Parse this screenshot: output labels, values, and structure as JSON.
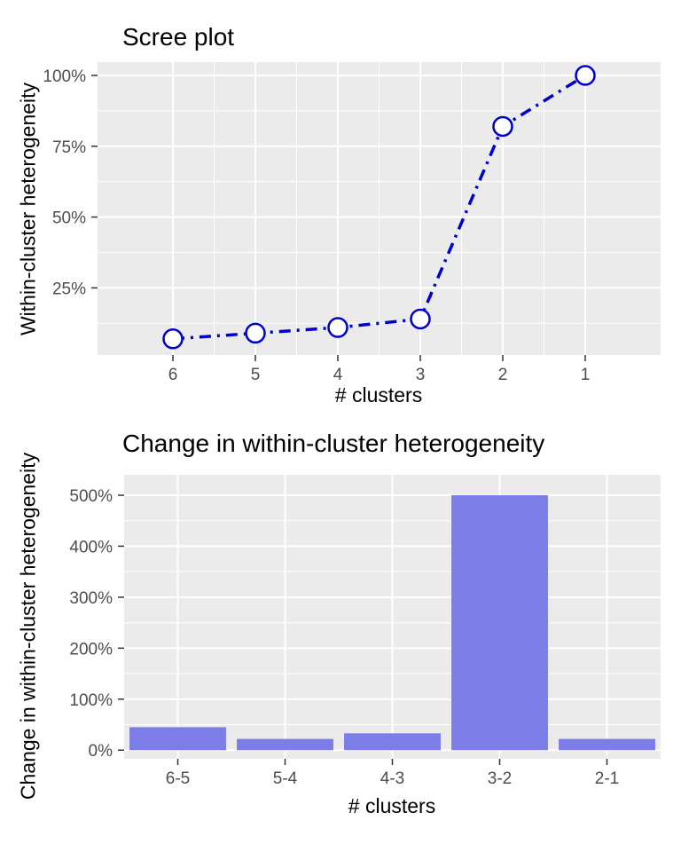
{
  "figure": {
    "background": "#FFFFFF",
    "title_color": "#000000",
    "axis_title_color": "#000000",
    "tick_text_color": "#4D4D4D",
    "tick_mark_color": "#333333",
    "panel_background": "#EBEBEB",
    "gridline_color": "#FFFFFF"
  },
  "chart_data": [
    {
      "id": "scree",
      "type": "line",
      "title": "Scree plot",
      "xlabel": "# clusters",
      "ylabel": "Within-cluster heterogeneity",
      "x": [
        6,
        5,
        4,
        3,
        2,
        1
      ],
      "x_tick_labels": [
        "6",
        "5",
        "4",
        "3",
        "2",
        "1"
      ],
      "x_axis_reversed": true,
      "y_percent": [
        7,
        9,
        11,
        14,
        82,
        100
      ],
      "y_ticks": [
        25,
        50,
        75,
        100
      ],
      "y_tick_labels": [
        "25%",
        "50%",
        "75%",
        "100%"
      ],
      "y_minor_ticks": [
        12.5,
        37.5,
        62.5,
        87.5
      ],
      "ylim": [
        1.3,
        104.7
      ],
      "line_color": "#0000CD",
      "line_style": "dotdash",
      "marker": "open-circle-white-fill",
      "panel_bg": "#EBEBEB",
      "grid_color": "#FFFFFF",
      "legend": "none"
    },
    {
      "id": "change",
      "type": "bar",
      "title": "Change in within-cluster heterogeneity",
      "xlabel": "# clusters",
      "ylabel": "Change in within-cluster heterogeneity",
      "categories": [
        "6-5",
        "5-4",
        "4-3",
        "3-2",
        "2-1"
      ],
      "values_percent": [
        45,
        22,
        33,
        500,
        22
      ],
      "y_ticks": [
        0,
        100,
        200,
        300,
        400,
        500
      ],
      "y_tick_labels": [
        "0%",
        "100%",
        "200%",
        "300%",
        "400%",
        "500%"
      ],
      "y_minor_ticks": [
        50,
        150,
        250,
        350,
        450
      ],
      "ylim": [
        -17,
        540
      ],
      "bar_color": "#7D7DE8",
      "panel_bg": "#EBEBEB",
      "grid_color": "#FFFFFF",
      "legend": "none"
    }
  ]
}
